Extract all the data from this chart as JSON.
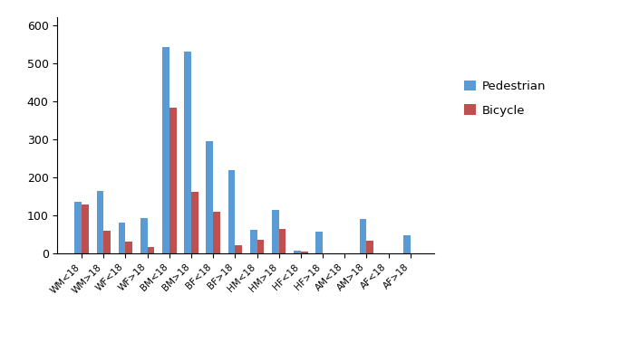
{
  "categories": [
    "WM<18",
    "WM>18",
    "WF<18",
    "WF>18",
    "BM<18",
    "BM>18",
    "BF<18",
    "BF>18",
    "HM<18",
    "HM>18",
    "HF<18",
    "HF>18",
    "AM<18",
    "AM>18",
    "AF<18",
    "AF>18"
  ],
  "pedestrian": [
    135,
    165,
    82,
    92,
    543,
    530,
    295,
    218,
    63,
    115,
    8,
    57,
    0,
    90,
    0,
    47
  ],
  "bicycle": [
    128,
    60,
    30,
    17,
    382,
    162,
    110,
    22,
    37,
    65,
    5,
    0,
    0,
    33,
    0,
    0
  ],
  "pedestrian_color": "#5B9BD5",
  "bicycle_color": "#C0504D",
  "legend_labels": [
    "Pedestrian",
    "Bicycle"
  ],
  "ylim": [
    0,
    620
  ],
  "yticks": [
    0,
    100,
    200,
    300,
    400,
    500,
    600
  ],
  "bar_width": 0.32,
  "figsize": [
    7.05,
    3.89
  ],
  "dpi": 100
}
